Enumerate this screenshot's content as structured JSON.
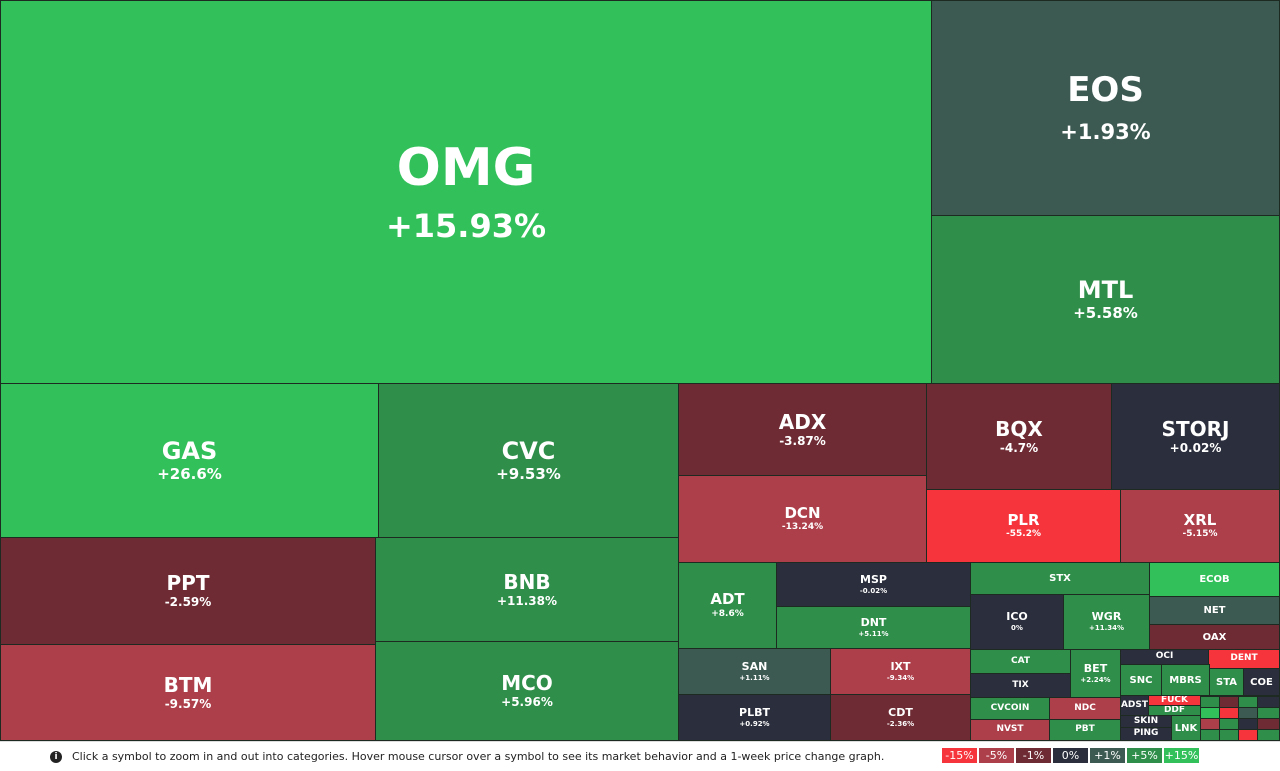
{
  "tiles": [
    {
      "symbol": "OMG",
      "change": "+15.93%"
    },
    {
      "symbol": "EOS",
      "change": "+1.93%"
    },
    {
      "symbol": "MTL",
      "change": "+5.58%"
    },
    {
      "symbol": "GAS",
      "change": "+26.6%"
    },
    {
      "symbol": "CVC",
      "change": "+9.53%"
    },
    {
      "symbol": "PPT",
      "change": "-2.59%"
    },
    {
      "symbol": "BTM",
      "change": "-9.57%"
    },
    {
      "symbol": "BNB",
      "change": "+11.38%"
    },
    {
      "symbol": "MCO",
      "change": "+5.96%"
    },
    {
      "symbol": "ADX",
      "change": "-3.87%"
    },
    {
      "symbol": "DCN",
      "change": "-13.24%"
    },
    {
      "symbol": "BQX",
      "change": "-4.7%"
    },
    {
      "symbol": "STORJ",
      "change": "+0.02%"
    },
    {
      "symbol": "PLR",
      "change": "-55.2%"
    },
    {
      "symbol": "XRL",
      "change": "-5.15%"
    },
    {
      "symbol": "ADT",
      "change": "+8.6%"
    },
    {
      "symbol": "MSP",
      "change": "-0.02%"
    },
    {
      "symbol": "DNT",
      "change": "+5.11%"
    },
    {
      "symbol": "STX"
    },
    {
      "symbol": "ECOB"
    },
    {
      "symbol": "ICO",
      "change": "0%"
    },
    {
      "symbol": "WGR",
      "change": "+11.34%"
    },
    {
      "symbol": "NET"
    },
    {
      "symbol": "OAX"
    },
    {
      "symbol": "SAN",
      "change": "+1.11%"
    },
    {
      "symbol": "IXT",
      "change": "-9.34%"
    },
    {
      "symbol": "PLBT",
      "change": "+0.92%"
    },
    {
      "symbol": "CDT",
      "change": "-2.36%"
    },
    {
      "symbol": "CAT"
    },
    {
      "symbol": "TIX"
    },
    {
      "symbol": "BET",
      "change": "+2.24%"
    },
    {
      "symbol": "CVCOIN"
    },
    {
      "symbol": "NVST"
    },
    {
      "symbol": "NDC"
    },
    {
      "symbol": "PBT"
    },
    {
      "symbol": "OCI"
    },
    {
      "symbol": "DENT"
    },
    {
      "symbol": "SNC"
    },
    {
      "symbol": "MBRS"
    },
    {
      "symbol": "STA"
    },
    {
      "symbol": "COE"
    },
    {
      "symbol": "ADST"
    },
    {
      "symbol": "FUCK"
    },
    {
      "symbol": "DDF"
    },
    {
      "symbol": "SKIN"
    },
    {
      "symbol": "PING"
    },
    {
      "symbol": "LNK"
    }
  ],
  "footer": {
    "info": "Click a symbol to zoom in and out into categories. Hover mouse cursor over a symbol to see its market behavior and a 1-week price change graph.",
    "legend": [
      "-15%",
      "-5%",
      "-1%",
      "0%",
      "+1%",
      "+5%",
      "+15%"
    ]
  }
}
